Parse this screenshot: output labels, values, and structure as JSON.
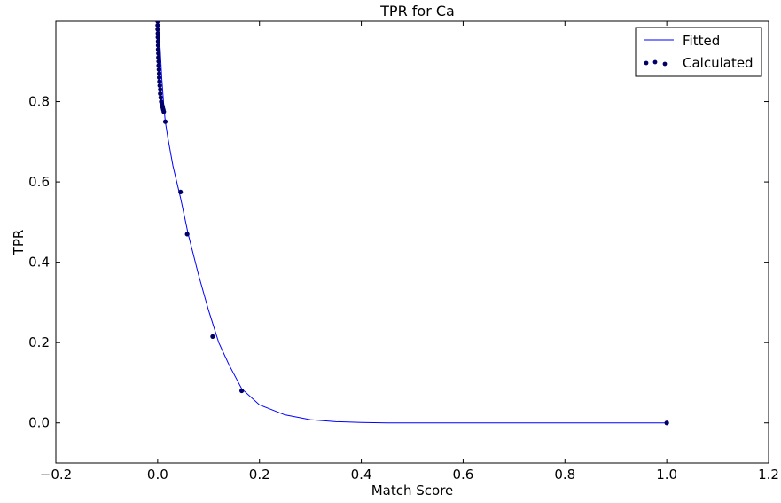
{
  "chart_data": {
    "type": "scatter",
    "title": "TPR for Ca",
    "xlabel": "Match Score",
    "ylabel": "TPR",
    "xlim": [
      -0.2,
      1.2
    ],
    "ylim": [
      -0.1,
      1.0
    ],
    "xticks": [
      "−0.2",
      "0.0",
      "0.2",
      "0.4",
      "0.6",
      "0.8",
      "1.0",
      "1.2"
    ],
    "yticks": [
      "0.0",
      "0.2",
      "0.4",
      "0.6",
      "0.8"
    ],
    "grid": false,
    "legend_position": "top-right",
    "series": [
      {
        "name": "Fitted",
        "type": "line",
        "color": "#0000ff",
        "points": [
          [
            0.0,
            1.0
          ],
          [
            0.002,
            0.98
          ],
          [
            0.005,
            0.93
          ],
          [
            0.008,
            0.86
          ],
          [
            0.012,
            0.79
          ],
          [
            0.015,
            0.75
          ],
          [
            0.02,
            0.71
          ],
          [
            0.03,
            0.64
          ],
          [
            0.045,
            0.56
          ],
          [
            0.06,
            0.47
          ],
          [
            0.08,
            0.37
          ],
          [
            0.1,
            0.28
          ],
          [
            0.12,
            0.2
          ],
          [
            0.14,
            0.145
          ],
          [
            0.165,
            0.085
          ],
          [
            0.2,
            0.045
          ],
          [
            0.25,
            0.02
          ],
          [
            0.3,
            0.008
          ],
          [
            0.35,
            0.003
          ],
          [
            0.4,
            0.001
          ],
          [
            0.45,
            0.0
          ],
          [
            0.6,
            0.0
          ],
          [
            0.8,
            0.0
          ],
          [
            1.0,
            0.0
          ]
        ]
      },
      {
        "name": "Calculated",
        "type": "scatter",
        "color": "#000066",
        "points": [
          [
            0.0,
            1.0
          ],
          [
            0.0,
            0.99
          ],
          [
            0.0,
            0.98
          ],
          [
            0.0005,
            0.97
          ],
          [
            0.0005,
            0.96
          ],
          [
            0.001,
            0.95
          ],
          [
            0.001,
            0.94
          ],
          [
            0.001,
            0.93
          ],
          [
            0.0015,
            0.92
          ],
          [
            0.0015,
            0.91
          ],
          [
            0.002,
            0.9
          ],
          [
            0.002,
            0.89
          ],
          [
            0.0025,
            0.88
          ],
          [
            0.003,
            0.87
          ],
          [
            0.003,
            0.86
          ],
          [
            0.0035,
            0.85
          ],
          [
            0.004,
            0.84
          ],
          [
            0.005,
            0.83
          ],
          [
            0.005,
            0.82
          ],
          [
            0.006,
            0.81
          ],
          [
            0.007,
            0.8
          ],
          [
            0.008,
            0.795
          ],
          [
            0.009,
            0.79
          ],
          [
            0.01,
            0.785
          ],
          [
            0.011,
            0.78
          ],
          [
            0.012,
            0.775
          ],
          [
            0.015,
            0.75
          ],
          [
            0.045,
            0.575
          ],
          [
            0.058,
            0.47
          ],
          [
            0.108,
            0.215
          ],
          [
            0.165,
            0.08
          ],
          [
            1.0,
            0.0
          ]
        ]
      }
    ]
  }
}
